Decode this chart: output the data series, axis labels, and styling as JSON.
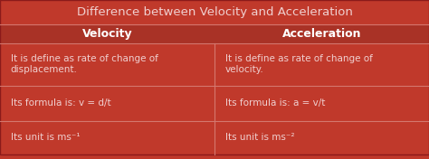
{
  "title": "Difference between Velocity and Acceleration",
  "title_bg": "#c0392b",
  "title_text_color": "#f0d0d0",
  "header_bg": "#a93226",
  "header_text_color": "#ffffff",
  "cell_bg": "#c0392b",
  "cell_text_color": "#f0d0d0",
  "divider_color": "#d4776e",
  "border_color": "#8b1a1a",
  "col1_header": "Velocity",
  "col2_header": "Acceleration",
  "rows": [
    [
      "It is define as rate of change of\ndisplacement.",
      "It is define as rate of change of\nvelocity."
    ],
    [
      "Its formula is: v = d/t",
      "Its formula is: a = v/t"
    ],
    [
      "Its unit is ms⁻¹",
      "Its unit is ms⁻²"
    ]
  ],
  "figsize": [
    4.74,
    1.76
  ],
  "dpi": 100
}
